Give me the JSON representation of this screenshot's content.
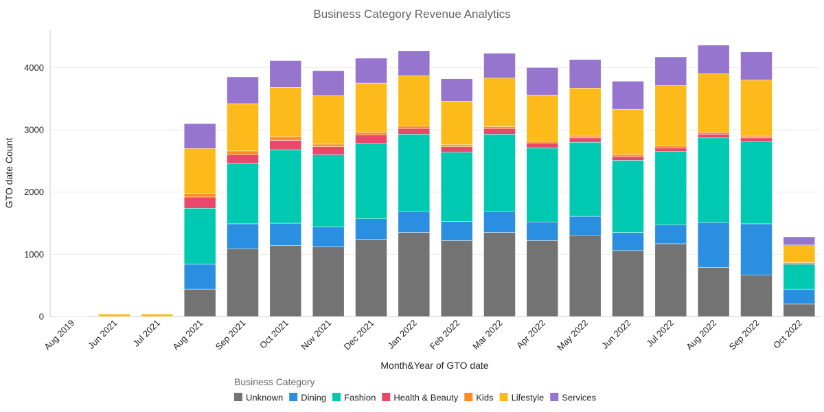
{
  "chart_data": {
    "type": "bar",
    "stacked": true,
    "title": "Business Category Revenue Analytics",
    "xlabel": "Month&Year of GTO date",
    "ylabel": "GTO date Count",
    "ylim": [
      0,
      4600
    ],
    "yticks": [
      0,
      1000,
      2000,
      3000,
      4000
    ],
    "grid": true,
    "legend_title": "Business Category",
    "legend_position": "bottom",
    "categories": [
      "Aug 2019",
      "Jun 2021",
      "Jul 2021",
      "Aug 2021",
      "Sep 2021",
      "Oct 2021",
      "Nov 2021",
      "Dec 2021",
      "Jan 2022",
      "Feb 2022",
      "Mar 2022",
      "Apr 2022",
      "May 2022",
      "Jun 2022",
      "Jul 2022",
      "Aug 2022",
      "Sep 2022",
      "Oct 2022"
    ],
    "series": [
      {
        "name": "Unknown",
        "color": "#737373",
        "values": [
          5,
          0,
          0,
          440,
          1090,
          1140,
          1120,
          1240,
          1350,
          1220,
          1350,
          1220,
          1310,
          1060,
          1170,
          790,
          670,
          200
        ]
      },
      {
        "name": "Dining",
        "color": "#2a8fe0",
        "values": [
          0,
          0,
          0,
          400,
          400,
          360,
          320,
          330,
          340,
          310,
          340,
          300,
          300,
          290,
          300,
          720,
          820,
          240
        ]
      },
      {
        "name": "Fashion",
        "color": "#00c9b1",
        "values": [
          0,
          0,
          0,
          900,
          970,
          1180,
          1160,
          1210,
          1240,
          1110,
          1240,
          1190,
          1190,
          1160,
          1180,
          1360,
          1320,
          400
        ]
      },
      {
        "name": "Health & Beauty",
        "color": "#e8496a",
        "values": [
          0,
          0,
          0,
          180,
          140,
          150,
          130,
          140,
          90,
          90,
          90,
          80,
          70,
          60,
          60,
          60,
          60,
          20
        ]
      },
      {
        "name": "Kids",
        "color": "#ff8c26",
        "values": [
          0,
          0,
          0,
          60,
          60,
          60,
          40,
          40,
          40,
          30,
          30,
          30,
          30,
          30,
          30,
          30,
          30,
          10
        ]
      },
      {
        "name": "Lifestyle",
        "color": "#fdbb1b",
        "values": [
          0,
          40,
          40,
          720,
          760,
          790,
          780,
          790,
          810,
          700,
          780,
          740,
          770,
          730,
          970,
          940,
          900,
          280
        ]
      },
      {
        "name": "Services",
        "color": "#9575cd",
        "values": [
          0,
          0,
          0,
          400,
          430,
          430,
          400,
          400,
          400,
          360,
          400,
          440,
          460,
          450,
          460,
          460,
          450,
          130
        ]
      }
    ]
  }
}
